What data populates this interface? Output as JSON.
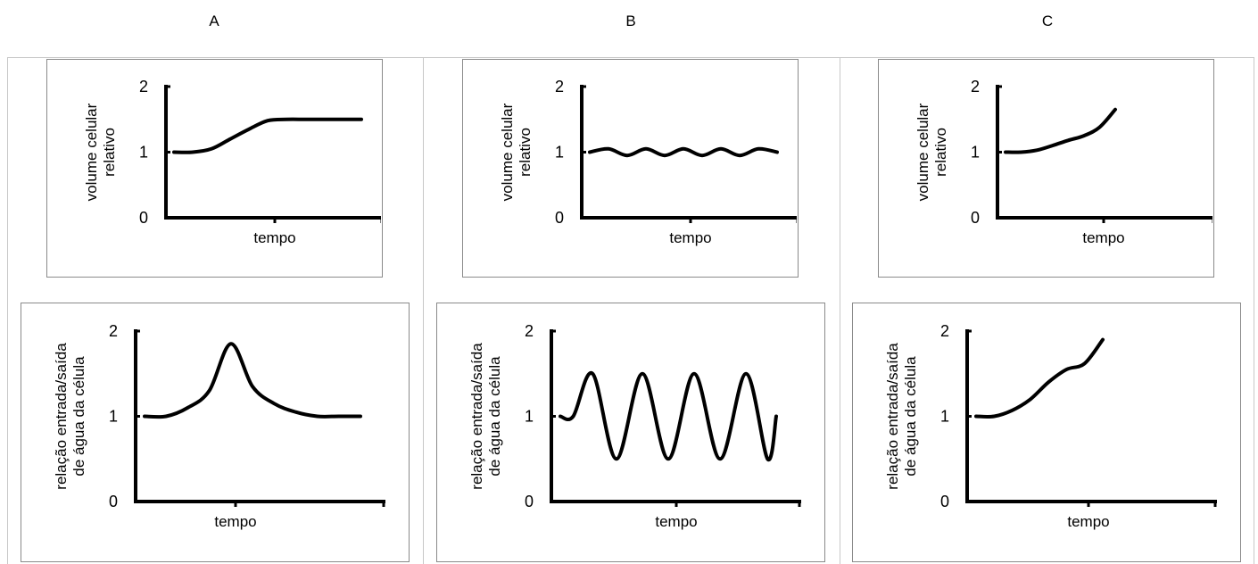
{
  "columns": [
    {
      "label": "A"
    },
    {
      "label": "B"
    },
    {
      "label": "C"
    }
  ],
  "chart_data": [
    {
      "panel": "A1",
      "type": "line",
      "title": "",
      "ylabel": [
        "volume celular",
        "relativo"
      ],
      "xlabel": "tempo",
      "ylim": [
        0,
        2
      ],
      "yticks": [
        "0",
        "1",
        "2"
      ],
      "x": [
        0,
        1,
        2,
        3,
        4,
        5,
        6,
        7,
        8,
        9,
        10
      ],
      "series": [
        {
          "values": [
            1.0,
            1.0,
            1.05,
            1.2,
            1.35,
            1.48,
            1.5,
            1.5,
            1.5,
            1.5,
            1.5
          ]
        }
      ]
    },
    {
      "panel": "A2",
      "type": "line",
      "title": "",
      "ylabel": [
        "relação entrada/saída",
        "de água da célula"
      ],
      "xlabel": "tempo",
      "ylim": [
        0,
        2
      ],
      "yticks": [
        "0",
        "1",
        "2"
      ],
      "x": [
        0,
        1,
        2,
        3,
        4,
        5,
        6,
        7,
        8,
        9,
        10
      ],
      "series": [
        {
          "values": [
            1.0,
            1.0,
            1.1,
            1.3,
            1.85,
            1.35,
            1.15,
            1.05,
            1.0,
            1.0,
            1.0
          ]
        }
      ]
    },
    {
      "panel": "B1",
      "type": "line",
      "title": "",
      "ylabel": [
        "volume celular",
        "relativo"
      ],
      "xlabel": "tempo",
      "ylim": [
        0,
        2
      ],
      "yticks": [
        "0",
        "1",
        "2"
      ],
      "x": [
        0,
        1,
        2,
        3,
        4,
        5,
        6,
        7,
        8,
        9,
        10
      ],
      "series": [
        {
          "values": [
            1.0,
            1.05,
            0.95,
            1.05,
            0.95,
            1.05,
            0.95,
            1.05,
            0.95,
            1.05,
            1.0
          ]
        }
      ]
    },
    {
      "panel": "B2",
      "type": "line",
      "title": "",
      "ylabel": [
        "relação entrada/saída",
        "de água da célula"
      ],
      "xlabel": "tempo",
      "ylim": [
        0,
        2
      ],
      "yticks": [
        "0",
        "1",
        "2"
      ],
      "x": [
        0,
        0.6,
        1.5,
        2.6,
        3.8,
        5.0,
        6.2,
        7.4,
        8.6,
        9.6,
        10
      ],
      "series": [
        {
          "values": [
            1.0,
            1.0,
            1.5,
            0.5,
            1.5,
            0.5,
            1.5,
            0.5,
            1.5,
            0.5,
            1.0
          ]
        }
      ]
    },
    {
      "panel": "C1",
      "type": "line",
      "title": "",
      "ylabel": [
        "volume celular",
        "relativo"
      ],
      "xlabel": "tempo",
      "ylim": [
        0,
        2
      ],
      "yticks": [
        "0",
        "1",
        "2"
      ],
      "x": [
        0,
        1,
        2,
        3,
        4,
        5,
        6,
        7
      ],
      "series": [
        {
          "values": [
            1.0,
            1.0,
            1.03,
            1.1,
            1.18,
            1.25,
            1.38,
            1.65
          ]
        }
      ]
    },
    {
      "panel": "C2",
      "type": "line",
      "title": "",
      "ylabel": [
        "relação entrada/saída",
        "de água da célula"
      ],
      "xlabel": "tempo",
      "ylim": [
        0,
        2
      ],
      "yticks": [
        "0",
        "1",
        "2"
      ],
      "x": [
        0,
        1,
        2,
        3,
        4,
        5,
        6,
        7
      ],
      "series": [
        {
          "values": [
            1.0,
            1.0,
            1.07,
            1.2,
            1.4,
            1.55,
            1.62,
            1.9
          ]
        }
      ]
    }
  ]
}
